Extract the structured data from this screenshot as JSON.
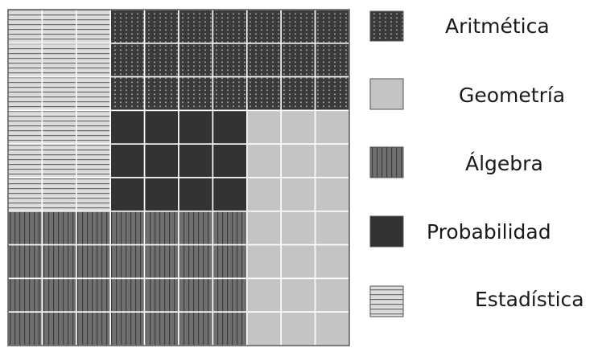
{
  "chart_data": {
    "type": "waffle",
    "grid": {
      "columns": 10,
      "rows": 10
    },
    "series": [
      {
        "name": "Aritmética",
        "value": 21,
        "color": "#3a3a3a",
        "pattern": "dots"
      },
      {
        "name": "Geometría",
        "value": 18,
        "color": "#c4c4c4",
        "pattern": "plain"
      },
      {
        "name": "Álgebra",
        "value": 25,
        "color": "#6f6f6f",
        "pattern": "vertical-stripes"
      },
      {
        "name": "Probabilidad",
        "value": 12,
        "color": "#333333",
        "pattern": "plain"
      },
      {
        "name": "Estadística",
        "value": 24,
        "color": "#d8d8d8",
        "pattern": "horizontal-stripes"
      }
    ],
    "legend_position": "right"
  }
}
